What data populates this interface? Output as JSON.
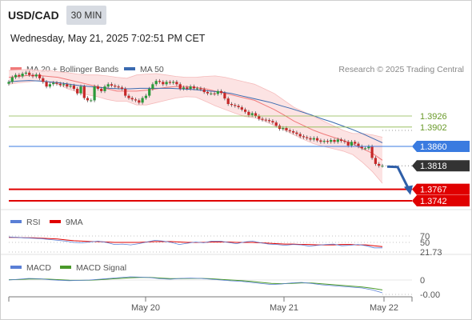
{
  "header": {
    "symbol": "USD/CAD",
    "timeframe": "30 MIN",
    "datetime": "Wednesday, May 21, 2025 7:02:51 PM CET"
  },
  "legend": {
    "ma20": "MA 20 + Bollinger Bands",
    "ma50": "MA 50",
    "credit": "Research © 2025 Trading Central"
  },
  "colors": {
    "ma20": "#f07a7a",
    "ma50": "#3a6ab0",
    "band_fill": "#fbdede",
    "resistance": "#8ab84a",
    "current_level": "#3a7be0",
    "support": "#e00000",
    "last_price": "#333333",
    "rsi": "#5a7fd6",
    "rsi_ma": "#e00000",
    "macd": "#5a7fd6",
    "macd_signal": "#4a9a2a",
    "arrow": "#2f5fa8"
  },
  "chart_data": [
    {
      "type": "candlestick",
      "panel": "price",
      "levels": [
        {
          "value": 1.3926,
          "label": "1.3926",
          "kind": "resistance"
        },
        {
          "value": 1.3902,
          "label": "1.3902",
          "kind": "resistance"
        },
        {
          "value": 1.386,
          "label": "1.3860",
          "kind": "pivot"
        },
        {
          "value": 1.3818,
          "label": "1.3818",
          "kind": "last"
        },
        {
          "value": 1.3767,
          "label": "1.3767",
          "kind": "support"
        },
        {
          "value": 1.3742,
          "label": "1.3742",
          "kind": "support"
        }
      ],
      "close": [
        1.4,
        1.401,
        1.4015,
        1.4012,
        1.4018,
        1.402,
        1.4015,
        1.4012,
        1.4016,
        1.4008,
        1.4,
        1.399,
        1.3995,
        1.3998,
        1.3996,
        1.3993,
        1.3995,
        1.399,
        1.3992,
        1.3985,
        1.3975,
        1.399,
        1.3965,
        1.396,
        1.396,
        1.399,
        1.3985,
        1.398,
        1.399,
        1.3995,
        1.3992,
        1.399,
        1.3988,
        1.3985,
        1.397,
        1.3965,
        1.3962,
        1.396,
        1.3955,
        1.3965,
        1.397,
        1.3985,
        1.3995,
        1.4002,
        1.4,
        1.3995,
        1.4,
        1.3998,
        1.4,
        1.3995,
        1.3985,
        1.3988,
        1.3985,
        1.399,
        1.3986,
        1.3986,
        1.3984,
        1.3978,
        1.3975,
        1.3975,
        1.3974,
        1.398,
        1.3976,
        1.3964,
        1.3952,
        1.395,
        1.3948,
        1.3945,
        1.394,
        1.3935,
        1.3928,
        1.3932,
        1.3926,
        1.392,
        1.3918,
        1.3917,
        1.3915,
        1.3912,
        1.3905,
        1.3898,
        1.39,
        1.3895,
        1.3893,
        1.389,
        1.3887,
        1.3882,
        1.388,
        1.3878,
        1.3875,
        1.3878,
        1.3873,
        1.387,
        1.3872,
        1.387,
        1.3874,
        1.387,
        1.3875,
        1.3872,
        1.387,
        1.3862,
        1.387,
        1.3866,
        1.386,
        1.3856,
        1.3856,
        1.386,
        1.3835,
        1.3822,
        1.3818,
        1.3818
      ],
      "ma20": [
        1.401,
        1.4012,
        1.4014,
        1.4014,
        1.4012,
        1.401,
        1.4005,
        1.4,
        1.3995,
        1.399,
        1.3985,
        1.398,
        1.398,
        1.398,
        1.3982,
        1.3985,
        1.3988,
        1.399,
        1.399,
        1.3988,
        1.3985,
        1.398,
        1.3975,
        1.397,
        1.3965,
        1.396,
        1.395,
        1.394,
        1.3928,
        1.3915,
        1.3905,
        1.3895,
        1.3887,
        1.388,
        1.3873,
        1.3865,
        1.3855,
        1.3845,
        1.383
      ],
      "ma50": [
        1.4,
        1.4002,
        1.4003,
        1.4002,
        1.4,
        1.3998,
        1.3995,
        1.3992,
        1.399,
        1.3988,
        1.3986,
        1.3985,
        1.3985,
        1.3986,
        1.3986,
        1.3986,
        1.3986,
        1.3985,
        1.3984,
        1.3982,
        1.398,
        1.3978,
        1.3975,
        1.397,
        1.3965,
        1.396,
        1.3955,
        1.3948,
        1.3942,
        1.3935,
        1.3928,
        1.392,
        1.3913,
        1.3905,
        1.3897,
        1.3888,
        1.3878,
        1.3868
      ],
      "bb_upper": [
        1.4025,
        1.4026,
        1.4027,
        1.4025,
        1.4025,
        1.4022,
        1.402,
        1.4017,
        1.4015,
        1.4015,
        1.4013,
        1.401,
        1.4008,
        1.4015,
        1.4017,
        1.4018,
        1.4015,
        1.4012,
        1.401,
        1.401,
        1.4012,
        1.4013,
        1.401,
        1.4005,
        1.4,
        1.3995,
        1.3985,
        1.3975,
        1.396,
        1.3945,
        1.3935,
        1.3925,
        1.3915,
        1.3905,
        1.3895,
        1.3888,
        1.3888,
        1.3885,
        1.388
      ],
      "bb_lower": [
        1.3995,
        1.3998,
        1.4,
        1.4003,
        1.4,
        1.3995,
        1.3985,
        1.3978,
        1.3972,
        1.3968,
        1.3962,
        1.3958,
        1.3958,
        1.395,
        1.395,
        1.3955,
        1.396,
        1.3965,
        1.3968,
        1.3967,
        1.3958,
        1.3948,
        1.394,
        1.3932,
        1.3925,
        1.3922,
        1.3915,
        1.3905,
        1.3896,
        1.3885,
        1.3875,
        1.3866,
        1.386,
        1.3855,
        1.385,
        1.3842,
        1.3825,
        1.3805,
        1.378
      ],
      "forecast_arrow": {
        "from": 1.3818,
        "to": 1.376
      }
    },
    {
      "type": "line",
      "panel": "RSI",
      "series_names": [
        "RSI",
        "9MA"
      ],
      "levels": [
        70,
        50,
        21.73
      ],
      "level_labels": [
        "70",
        "50",
        "21.73"
      ],
      "rsi": [
        48,
        47,
        46,
        45,
        44,
        42,
        40,
        38,
        35,
        34,
        36,
        38,
        35,
        30,
        31,
        29,
        32,
        36,
        40,
        38,
        35,
        30,
        33,
        36,
        34,
        38,
        38,
        35,
        32,
        36,
        38,
        34,
        31,
        30,
        28,
        30,
        29,
        26,
        28,
        30,
        31,
        27,
        28,
        30,
        27,
        22,
        22
      ],
      "rsi_ma": [
        47,
        47,
        46,
        46,
        45,
        44,
        43,
        41,
        39,
        38,
        37,
        37,
        36,
        35,
        35,
        35,
        35,
        36,
        37,
        37,
        37,
        36,
        35,
        35,
        35,
        36,
        36,
        36,
        35,
        35,
        35,
        34,
        33,
        32,
        31,
        31,
        30,
        30,
        29,
        29,
        29,
        30,
        30,
        29,
        29,
        27,
        25
      ]
    },
    {
      "type": "line",
      "panel": "MACD",
      "series_names": [
        "MACD",
        "MACD Signal"
      ],
      "levels": [
        0,
        -0.0
      ],
      "level_labels": [
        "0",
        "-0.00"
      ],
      "macd": [
        0.0,
        0.05,
        0.1,
        0.08,
        0.02,
        -0.02,
        -0.04,
        -0.02,
        0.0,
        0.05,
        0.1,
        0.15,
        0.2,
        0.18,
        0.15,
        0.08,
        0.05,
        0.1,
        0.12,
        0.1,
        0.05,
        0.0,
        -0.05,
        -0.08,
        -0.15,
        -0.22,
        -0.28,
        -0.25,
        -0.18,
        -0.15,
        -0.22,
        -0.3,
        -0.35,
        -0.4,
        -0.45,
        -0.5,
        -0.62,
        -0.8
      ],
      "signal": [
        0.02,
        0.03,
        0.06,
        0.07,
        0.05,
        0.02,
        -0.01,
        -0.02,
        -0.01,
        0.02,
        0.06,
        0.1,
        0.14,
        0.16,
        0.16,
        0.12,
        0.09,
        0.09,
        0.1,
        0.1,
        0.08,
        0.04,
        0.0,
        -0.04,
        -0.09,
        -0.15,
        -0.21,
        -0.23,
        -0.21,
        -0.18,
        -0.19,
        -0.24,
        -0.29,
        -0.34,
        -0.39,
        -0.44,
        -0.52,
        -0.62
      ]
    }
  ],
  "rsi_legend": {
    "rsi": "RSI",
    "ma": "9MA"
  },
  "macd_legend": {
    "macd": "MACD",
    "signal": "MACD Signal"
  },
  "x_axis": {
    "labels": [
      "May 20",
      "May 21",
      "May 22"
    ]
  }
}
